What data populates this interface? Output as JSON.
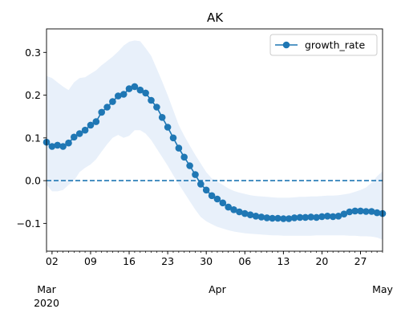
{
  "chart_data": {
    "type": "line",
    "title": "AK",
    "xlabel": "",
    "ylabel": "",
    "xlim": [
      "2020-03-01",
      "2020-05-01"
    ],
    "ylim": [
      -0.165,
      0.355
    ],
    "yticks": [
      -0.1,
      0.0,
      0.1,
      0.2,
      0.3
    ],
    "ytick_labels": [
      "−0.1",
      "0.0",
      "0.1",
      "0.2",
      "0.3"
    ],
    "xticks": [
      {
        "date": "2020-03-02",
        "label": "02"
      },
      {
        "date": "2020-03-09",
        "label": "09"
      },
      {
        "date": "2020-03-16",
        "label": "16"
      },
      {
        "date": "2020-03-23",
        "label": "23"
      },
      {
        "date": "2020-03-30",
        "label": "30"
      },
      {
        "date": "2020-04-06",
        "label": "06"
      },
      {
        "date": "2020-04-13",
        "label": "13"
      },
      {
        "date": "2020-04-20",
        "label": "20"
      },
      {
        "date": "2020-04-27",
        "label": "27"
      }
    ],
    "month_ticks": [
      {
        "date": "2020-03-01",
        "label": "Mar",
        "year": "2020"
      },
      {
        "date": "2020-04-01",
        "label": "Apr"
      },
      {
        "date": "2020-05-01",
        "label": "May"
      }
    ],
    "grid": false,
    "legend": {
      "position": "top-right",
      "entries": [
        "growth_rate"
      ]
    },
    "reference_line": {
      "y": 0.0,
      "style": "dashed",
      "color": "#1f77b4"
    },
    "series": [
      {
        "name": "growth_rate",
        "color": "#1f77b4",
        "marker": "circle",
        "x": [
          "2020-03-01",
          "2020-03-02",
          "2020-03-03",
          "2020-03-04",
          "2020-03-05",
          "2020-03-06",
          "2020-03-07",
          "2020-03-08",
          "2020-03-09",
          "2020-03-10",
          "2020-03-11",
          "2020-03-12",
          "2020-03-13",
          "2020-03-14",
          "2020-03-15",
          "2020-03-16",
          "2020-03-17",
          "2020-03-18",
          "2020-03-19",
          "2020-03-20",
          "2020-03-21",
          "2020-03-22",
          "2020-03-23",
          "2020-03-24",
          "2020-03-25",
          "2020-03-26",
          "2020-03-27",
          "2020-03-28",
          "2020-03-29",
          "2020-03-30",
          "2020-03-31",
          "2020-04-01",
          "2020-04-02",
          "2020-04-03",
          "2020-04-04",
          "2020-04-05",
          "2020-04-06",
          "2020-04-07",
          "2020-04-08",
          "2020-04-09",
          "2020-04-10",
          "2020-04-11",
          "2020-04-12",
          "2020-04-13",
          "2020-04-14",
          "2020-04-15",
          "2020-04-16",
          "2020-04-17",
          "2020-04-18",
          "2020-04-19",
          "2020-04-20",
          "2020-04-21",
          "2020-04-22",
          "2020-04-23",
          "2020-04-24",
          "2020-04-25",
          "2020-04-26",
          "2020-04-27",
          "2020-04-28",
          "2020-04-29",
          "2020-04-30",
          "2020-05-01"
        ],
        "y": [
          0.09,
          0.08,
          0.083,
          0.08,
          0.088,
          0.102,
          0.11,
          0.118,
          0.13,
          0.138,
          0.16,
          0.172,
          0.185,
          0.198,
          0.202,
          0.215,
          0.22,
          0.212,
          0.205,
          0.188,
          0.172,
          0.148,
          0.125,
          0.1,
          0.076,
          0.055,
          0.035,
          0.014,
          -0.008,
          -0.022,
          -0.035,
          -0.043,
          -0.052,
          -0.062,
          -0.068,
          -0.073,
          -0.077,
          -0.08,
          -0.083,
          -0.085,
          -0.087,
          -0.088,
          -0.088,
          -0.089,
          -0.089,
          -0.087,
          -0.086,
          -0.086,
          -0.085,
          -0.086,
          -0.084,
          -0.083,
          -0.084,
          -0.083,
          -0.078,
          -0.073,
          -0.071,
          -0.071,
          -0.072,
          -0.072,
          -0.075,
          -0.077
        ]
      }
    ],
    "confidence_band": {
      "color": "#e8f0fa",
      "upper": [
        0.245,
        0.24,
        0.23,
        0.22,
        0.212,
        0.23,
        0.24,
        0.242,
        0.25,
        0.258,
        0.27,
        0.28,
        0.29,
        0.302,
        0.316,
        0.325,
        0.328,
        0.326,
        0.31,
        0.292,
        0.262,
        0.232,
        0.2,
        0.165,
        0.13,
        0.105,
        0.082,
        0.06,
        0.04,
        0.02,
        0.005,
        -0.002,
        -0.01,
        -0.018,
        -0.024,
        -0.028,
        -0.031,
        -0.034,
        -0.036,
        -0.037,
        -0.038,
        -0.039,
        -0.04,
        -0.04,
        -0.04,
        -0.039,
        -0.038,
        -0.038,
        -0.037,
        -0.037,
        -0.036,
        -0.035,
        -0.035,
        -0.034,
        -0.032,
        -0.03,
        -0.026,
        -0.022,
        -0.016,
        -0.005,
        0.01,
        0.022
      ],
      "lower": [
        -0.01,
        -0.025,
        -0.025,
        -0.022,
        -0.01,
        0.0,
        0.02,
        0.03,
        0.038,
        0.05,
        0.068,
        0.085,
        0.1,
        0.107,
        0.1,
        0.105,
        0.118,
        0.118,
        0.11,
        0.095,
        0.075,
        0.055,
        0.035,
        0.013,
        -0.008,
        -0.028,
        -0.048,
        -0.068,
        -0.085,
        -0.095,
        -0.102,
        -0.108,
        -0.112,
        -0.116,
        -0.119,
        -0.121,
        -0.123,
        -0.124,
        -0.125,
        -0.126,
        -0.127,
        -0.128,
        -0.128,
        -0.129,
        -0.129,
        -0.129,
        -0.129,
        -0.129,
        -0.129,
        -0.128,
        -0.128,
        -0.128,
        -0.128,
        -0.128,
        -0.128,
        -0.129,
        -0.129,
        -0.13,
        -0.13,
        -0.131,
        -0.133,
        -0.138
      ]
    }
  }
}
